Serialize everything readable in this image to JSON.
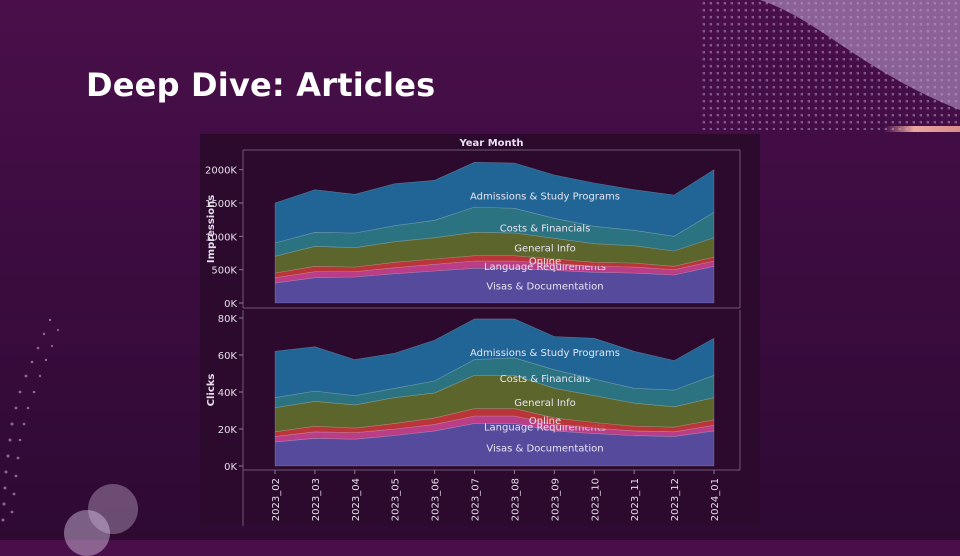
{
  "slide": {
    "title": "Deep Dive: Articles"
  },
  "colors": {
    "background": "#3c0c40",
    "accent": "#e9a7a0",
    "series": {
      "Visas & Documentation": "#5a50a6",
      "Language Requirements": "#c6428f",
      "Online": "#c63a3a",
      "General Info": "#5f6e2c",
      "Costs & Financials": "#2c7d8a",
      "Admissions & Study Programs": "#1f6e9e"
    }
  },
  "chart_data": {
    "type": "area",
    "stacked": true,
    "column_header": "Year Month",
    "categories": [
      "2023_02",
      "2023_03",
      "2023_04",
      "2023_05",
      "2023_06",
      "2023_07",
      "2023_08",
      "2023_09",
      "2023_10",
      "2023_11",
      "2023_12",
      "2024_01"
    ],
    "panels": [
      {
        "ylabel": "Impressions",
        "ylim": [
          0,
          2100000
        ],
        "ticks": [
          0,
          500000,
          1000000,
          1500000,
          2000000
        ],
        "tick_labels": [
          "0K",
          "500K",
          "1000K",
          "1500K",
          "2000K"
        ],
        "series": [
          {
            "name": "Visas & Documentation",
            "values": [
              300000,
              380000,
              390000,
              440000,
              480000,
              520000,
              520000,
              490000,
              460000,
              450000,
              420000,
              550000
            ]
          },
          {
            "name": "Language Requirements",
            "values": [
              80000,
              90000,
              80000,
              90000,
              100000,
              110000,
              110000,
              100000,
              90000,
              90000,
              80000,
              80000
            ]
          },
          {
            "name": "Online",
            "values": [
              70000,
              80000,
              70000,
              80000,
              80000,
              80000,
              80000,
              70000,
              60000,
              60000,
              50000,
              60000
            ]
          },
          {
            "name": "General Info",
            "values": [
              250000,
              300000,
              290000,
              310000,
              320000,
              350000,
              340000,
              310000,
              280000,
              260000,
              230000,
              290000
            ]
          },
          {
            "name": "Costs & Financials",
            "values": [
              200000,
              210000,
              220000,
              240000,
              260000,
              380000,
              370000,
              300000,
              260000,
              230000,
              220000,
              380000
            ]
          },
          {
            "name": "Admissions & Study Programs",
            "values": [
              600000,
              640000,
              580000,
              630000,
              600000,
              670000,
              680000,
              650000,
              650000,
              610000,
              620000,
              640000
            ]
          }
        ]
      },
      {
        "ylabel": "Clicks",
        "ylim": [
          0,
          80000
        ],
        "ticks": [
          0,
          20000,
          40000,
          60000,
          80000
        ],
        "tick_labels": [
          "0K",
          "20K",
          "40K",
          "60K",
          "80K"
        ],
        "series": [
          {
            "name": "Visas & Documentation",
            "values": [
              13000,
              15000,
              14500,
              16500,
              19000,
              23000,
              23000,
              19000,
              17500,
              16500,
              16000,
              19000
            ]
          },
          {
            "name": "Language Requirements",
            "values": [
              3000,
              3500,
              3500,
              3500,
              3500,
              4000,
              4000,
              3500,
              3000,
              2500,
              2500,
              3000
            ]
          },
          {
            "name": "Online",
            "values": [
              2500,
              3000,
              2500,
              3000,
              3500,
              4000,
              4000,
              3500,
              3000,
              2500,
              2500,
              3000
            ]
          },
          {
            "name": "General Info",
            "values": [
              13000,
              13500,
              12500,
              14000,
              13500,
              18000,
              18000,
              16000,
              14500,
              12500,
              11000,
              12000
            ]
          },
          {
            "name": "Costs & Financials",
            "values": [
              5500,
              5500,
              5000,
              5000,
              6500,
              8500,
              9500,
              10000,
              9000,
              8000,
              9000,
              12000
            ]
          },
          {
            "name": "Admissions & Study Programs",
            "values": [
              25000,
              24000,
              19500,
              19000,
              22000,
              22000,
              21000,
              18000,
              22000,
              20000,
              16000,
              20000
            ]
          }
        ]
      }
    ]
  }
}
